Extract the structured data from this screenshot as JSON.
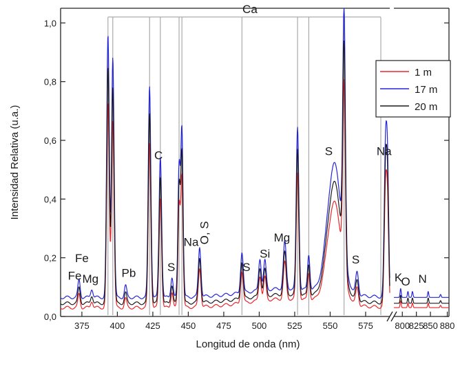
{
  "chart_data": {
    "type": "line",
    "title": "",
    "xlabel": "Longitud de onda (nm)",
    "ylabel": "Intensidad Relativa (u.a.)",
    "ylim": [
      0,
      1.05
    ],
    "y_ticks": [
      0.0,
      0.2,
      0.4,
      0.6,
      0.8,
      1.0
    ],
    "y_tick_labels": [
      "0,0",
      "0,2",
      "0,4",
      "0,6",
      "0,8",
      "1,0"
    ],
    "x_segments": [
      {
        "xlim": [
          360,
          592
        ],
        "ticks": [
          375,
          400,
          425,
          450,
          475,
          500,
          525,
          550,
          575
        ]
      },
      {
        "xlim": [
          785,
          883
        ],
        "ticks": [
          800,
          825,
          850,
          880
        ]
      }
    ],
    "x_tick_labels": [
      "375",
      "400",
      "425",
      "450",
      "475",
      "500",
      "525",
      "550",
      "575",
      "800",
      "825",
      "850",
      "880"
    ],
    "axis_break": true,
    "legend": {
      "position": "right",
      "entries": [
        "1 m",
        "17 m",
        "20 m"
      ]
    },
    "series": [
      {
        "name": "1 m",
        "color": "#e8262b",
        "baseline": 0.03,
        "scale": 0.78
      },
      {
        "name": "17 m",
        "color": "#2424d8",
        "baseline": 0.065,
        "scale": 1.0
      },
      {
        "name": "20 m",
        "color": "#1a1a1a",
        "baseline": 0.045,
        "scale": 0.9
      }
    ],
    "peaks": [
      {
        "x": 373,
        "y": 0.12,
        "w": 0.8
      },
      {
        "x": 382,
        "y": 0.09,
        "w": 0.8
      },
      {
        "x": 393.4,
        "y": 0.95,
        "w": 0.9
      },
      {
        "x": 396.8,
        "y": 0.88,
        "w": 0.9
      },
      {
        "x": 405.8,
        "y": 0.1,
        "w": 0.8
      },
      {
        "x": 422.7,
        "y": 0.78,
        "w": 0.9
      },
      {
        "x": 430.3,
        "y": 0.54,
        "w": 0.9
      },
      {
        "x": 438.5,
        "y": 0.13,
        "w": 0.8
      },
      {
        "x": 443.5,
        "y": 0.5,
        "w": 0.8
      },
      {
        "x": 445.5,
        "y": 0.63,
        "w": 0.8
      },
      {
        "x": 458,
        "y": 0.23,
        "w": 0.9
      },
      {
        "x": 487.8,
        "y": 0.2,
        "w": 0.9
      },
      {
        "x": 500.5,
        "y": 0.17,
        "w": 0.9
      },
      {
        "x": 504,
        "y": 0.16,
        "w": 0.9
      },
      {
        "x": 518,
        "y": 0.22,
        "w": 1.0
      },
      {
        "x": 527,
        "y": 0.61,
        "w": 0.9
      },
      {
        "x": 534.9,
        "y": 0.18,
        "w": 0.8
      },
      {
        "x": 553,
        "y": 0.5,
        "w": 5.0
      },
      {
        "x": 559.8,
        "y": 0.86,
        "w": 0.9
      },
      {
        "x": 569,
        "y": 0.14,
        "w": 1.0
      },
      {
        "x": 589,
        "y": 0.55,
        "w": 0.9
      },
      {
        "x": 590.5,
        "y": 0.45,
        "w": 0.8
      },
      {
        "x": 797,
        "y": 0.09,
        "w": 1.0
      },
      {
        "x": 810,
        "y": 0.08,
        "w": 1.0
      },
      {
        "x": 818,
        "y": 0.08,
        "w": 1.0
      },
      {
        "x": 846,
        "y": 0.08,
        "w": 1.0
      },
      {
        "x": 868,
        "y": 0.07,
        "w": 1.0
      }
    ],
    "group_annotation": {
      "label": "Ca",
      "y": 1.02,
      "lines_x": [
        393.4,
        396.8,
        422.7,
        430.3,
        443.5,
        445.5,
        487.8,
        527,
        534.9,
        559.8,
        585.7
      ]
    },
    "annotations": [
      {
        "text": "Fe",
        "x": 370,
        "y": 0.125
      },
      {
        "text": "Fe",
        "x": 375,
        "y": 0.185
      },
      {
        "text": "Mg",
        "x": 381,
        "y": 0.115
      },
      {
        "text": "Pb",
        "x": 408,
        "y": 0.135
      },
      {
        "text": "C",
        "x": 429,
        "y": 0.535
      },
      {
        "text": "S",
        "x": 438,
        "y": 0.155
      },
      {
        "text": "Na",
        "x": 452,
        "y": 0.24
      },
      {
        "text": "O, S",
        "x": 464,
        "y": 0.285,
        "rotate": -90
      },
      {
        "text": "S",
        "x": 491,
        "y": 0.155
      },
      {
        "text": "Si",
        "x": 504,
        "y": 0.2
      },
      {
        "text": "Mg",
        "x": 516,
        "y": 0.255
      },
      {
        "text": "S",
        "x": 549,
        "y": 0.55
      },
      {
        "text": "S",
        "x": 568,
        "y": 0.18
      },
      {
        "text": "Na",
        "x": 588,
        "y": 0.55
      },
      {
        "text": "K",
        "x": 793,
        "y": 0.12
      },
      {
        "text": "O",
        "x": 806,
        "y": 0.105
      },
      {
        "text": "N",
        "x": 836,
        "y": 0.115
      }
    ]
  }
}
